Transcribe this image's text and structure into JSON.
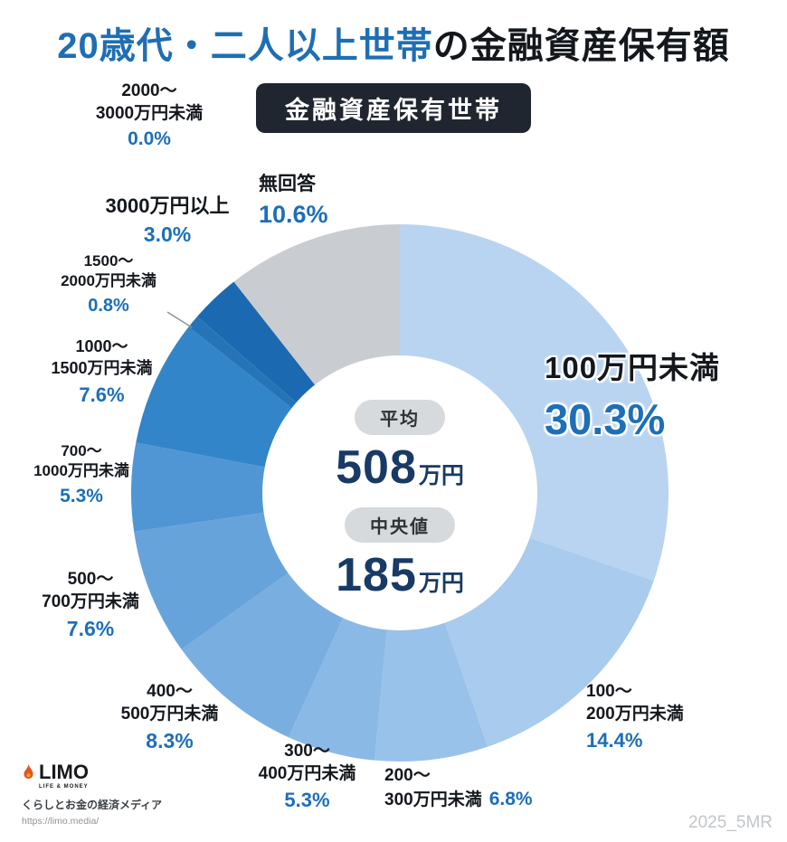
{
  "header": {
    "title_highlight": "20歳代・二人以上世帯",
    "title_rest": "の金融資産保有額",
    "badge": "金融資産保有世帯"
  },
  "chart_data": {
    "type": "pie",
    "donut": true,
    "title": "20歳代・二人以上世帯の金融資産保有額",
    "subtitle_badge": "金融資産保有世帯",
    "unit": "%",
    "start": "top",
    "direction": "clockwise",
    "hole_color": "#ffffff",
    "segments": [
      {
        "name": "100万円未満",
        "value": 30.3,
        "pct": "30.3%",
        "color": "#b9d4f0",
        "label_lines": [
          "100万円未満"
        ]
      },
      {
        "name": "100〜200万円未満",
        "value": 14.4,
        "pct": "14.4%",
        "color": "#a8cbee",
        "label_lines": [
          "100〜",
          "200万円未満"
        ]
      },
      {
        "name": "200〜300万円未満",
        "value": 6.8,
        "pct": "6.8%",
        "color": "#99c2ea",
        "label_lines": [
          "200〜",
          "300万円未満"
        ]
      },
      {
        "name": "300〜400万円未満",
        "value": 5.3,
        "pct": "5.3%",
        "color": "#8ab9e6",
        "label_lines": [
          "300〜",
          "400万円未満"
        ]
      },
      {
        "name": "400〜500万円未満",
        "value": 8.3,
        "pct": "8.3%",
        "color": "#79aee1",
        "label_lines": [
          "400〜",
          "500万円未満"
        ]
      },
      {
        "name": "500〜700万円未満",
        "value": 7.6,
        "pct": "7.6%",
        "color": "#66a3db",
        "label_lines": [
          "500〜",
          "700万円未満"
        ]
      },
      {
        "name": "700〜1000万円未満",
        "value": 5.3,
        "pct": "5.3%",
        "color": "#5096d4",
        "label_lines": [
          "700〜",
          "1000万円未満"
        ]
      },
      {
        "name": "1000〜1500万円未満",
        "value": 7.6,
        "pct": "7.6%",
        "color": "#3285c8",
        "label_lines": [
          "1000〜",
          "1500万円未満"
        ]
      },
      {
        "name": "1500〜2000万円未満",
        "value": 0.8,
        "pct": "0.8%",
        "color": "#2674b8",
        "label_lines": [
          "1500〜",
          "2000万円未満"
        ]
      },
      {
        "name": "2000〜3000万円未満",
        "value": 0.0,
        "pct": "0.0%",
        "color": "#2070b5",
        "label_lines": [
          "2000〜",
          "3000万円未満"
        ]
      },
      {
        "name": "3000万円以上",
        "value": 3.0,
        "pct": "3.0%",
        "color": "#1b6ab1",
        "label_lines": [
          "3000万円以上"
        ]
      },
      {
        "name": "無回答",
        "value": 10.6,
        "pct": "10.6%",
        "color": "#c9cdd1",
        "label_lines": [
          "無回答"
        ]
      }
    ],
    "center_stats": {
      "average_label": "平均",
      "average_value": "508",
      "average_unit": "万円",
      "median_label": "中央値",
      "median_value": "185",
      "median_unit": "万円"
    }
  },
  "footer": {
    "logo_text": "LIMO",
    "logo_subtext": "LIFE & MONEY",
    "tagline": "くらしとお金の経済メディア",
    "url": "https://limo.media/"
  },
  "watermark": "2025_5MR",
  "colors": {
    "title_blue": "#1e6eb4",
    "pct_blue": "#1c6fb8",
    "value_navy": "#183a64",
    "badge_bg": "#20262f",
    "no_answer_gray": "#c9cdd1"
  }
}
